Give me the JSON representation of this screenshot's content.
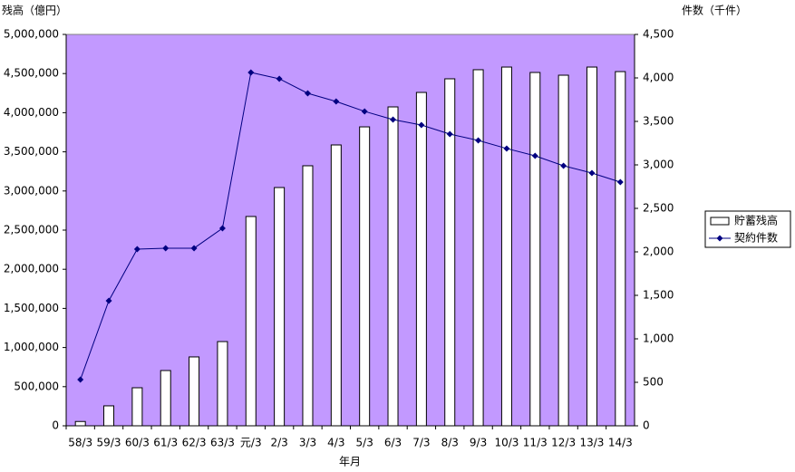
{
  "chart_data": {
    "type": "bar",
    "y_axis_label": "残高（億円）",
    "y2_axis_label": "件数（千件）",
    "x_axis_label": "年月",
    "plot_background": "#c299ff",
    "categories": [
      "58/3",
      "59/3",
      "60/3",
      "61/3",
      "62/3",
      "63/3",
      "元/3",
      "2/3",
      "3/3",
      "4/3",
      "5/3",
      "6/3",
      "7/3",
      "8/3",
      "9/3",
      "10/3",
      "11/3",
      "12/3",
      "13/3",
      "14/3"
    ],
    "series": [
      {
        "name": "貯蓄残高",
        "type": "bar",
        "color": "#ffffff",
        "axis": "y",
        "values": [
          55000,
          255000,
          486000,
          706000,
          880000,
          1076000,
          2674000,
          3044000,
          3322000,
          3588000,
          3819000,
          4074000,
          4259000,
          4433000,
          4549000,
          4583000,
          4514000,
          4479000,
          4583000,
          4525000
        ]
      },
      {
        "name": "契約件数",
        "type": "line",
        "color": "#000080",
        "axis": "y2",
        "values": [
          531,
          1438,
          2031,
          2042,
          2042,
          2271,
          4063,
          3990,
          3823,
          3729,
          3615,
          3521,
          3458,
          3354,
          3281,
          3188,
          3104,
          2990,
          2906,
          2802
        ]
      }
    ],
    "ylim": [
      0,
      5000000
    ],
    "yticks": [
      0,
      {
        "value": 500000,
        "label": "500,000"
      },
      {
        "value": 1000000,
        "label": "1,000,000"
      },
      {
        "value": 1500000,
        "label": "1,500,000"
      },
      {
        "value": 2000000,
        "label": "2,000,000"
      },
      {
        "value": 2500000,
        "label": "2,500,000"
      },
      {
        "value": 3000000,
        "label": "3,000,000"
      },
      {
        "value": 3500000,
        "label": "3,500,000"
      },
      {
        "value": 4000000,
        "label": "4,000,000"
      },
      {
        "value": 4500000,
        "label": "4,500,000"
      },
      {
        "value": 5000000,
        "label": "5,000,000"
      }
    ],
    "y2lim": [
      0,
      4500
    ],
    "y2ticks": [
      0,
      500,
      {
        "value": 1000,
        "label": "1,000"
      },
      {
        "value": 1500,
        "label": "1,500"
      },
      {
        "value": 2000,
        "label": "2,000"
      },
      {
        "value": 2500,
        "label": "2,500"
      },
      {
        "value": 3000,
        "label": "3,000"
      },
      {
        "value": 3500,
        "label": "3,500"
      },
      {
        "value": 4000,
        "label": "4,000"
      },
      {
        "value": 4500,
        "label": "4,500"
      }
    ],
    "legend": "right"
  }
}
